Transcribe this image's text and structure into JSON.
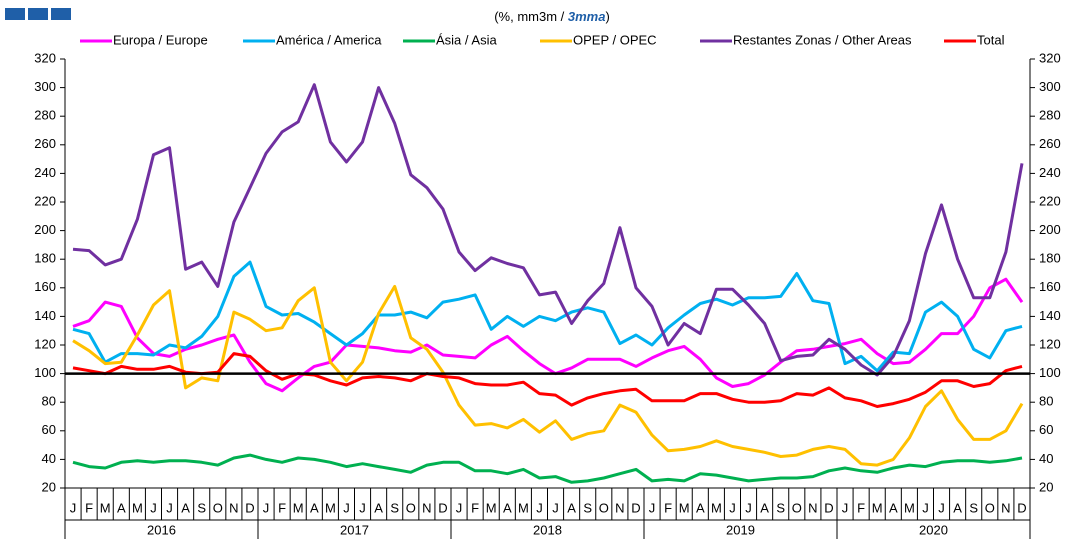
{
  "chart_data": {
    "type": "line",
    "subtitle": [
      "(%, mm3m / ",
      "3mma",
      ")"
    ],
    "categories": [
      "J",
      "F",
      "M",
      "A",
      "M",
      "J",
      "J",
      "A",
      "S",
      "O",
      "N",
      "D",
      "J",
      "F",
      "M",
      "A",
      "M",
      "J",
      "J",
      "A",
      "S",
      "O",
      "N",
      "D",
      "J",
      "F",
      "M",
      "A",
      "M",
      "J",
      "J",
      "A",
      "S",
      "O",
      "N",
      "D",
      "J",
      "F",
      "M",
      "A",
      "M",
      "J",
      "J",
      "A",
      "S",
      "O",
      "N",
      "D",
      "J",
      "F",
      "M",
      "A",
      "M",
      "J",
      "J",
      "A",
      "S",
      "O",
      "N",
      "D"
    ],
    "years": [
      "2016",
      "2017",
      "2018",
      "2019",
      "2020"
    ],
    "ylim": [
      20,
      320
    ],
    "yticks": [
      20,
      40,
      60,
      80,
      100,
      120,
      140,
      160,
      180,
      200,
      220,
      240,
      260,
      280,
      300,
      320
    ],
    "reference_line": 100,
    "legend": "top",
    "series": [
      {
        "name": "Europa / Europe",
        "color": "#ff00ff",
        "values": [
          133,
          137,
          150,
          147,
          125,
          114,
          112,
          117,
          120,
          124,
          127,
          108,
          93,
          88,
          97,
          105,
          108,
          120,
          119,
          118,
          116,
          115,
          120,
          113,
          112,
          111,
          120,
          126,
          116,
          107,
          100,
          104,
          110,
          110,
          110,
          105,
          111,
          116,
          119,
          110,
          97,
          91,
          93,
          99,
          108,
          116,
          117,
          119,
          121,
          124,
          114,
          107,
          108,
          117,
          128,
          128,
          140,
          160,
          166,
          150
        ]
      },
      {
        "name": "América / America",
        "color": "#00b0f0",
        "values": [
          131,
          128,
          108,
          114,
          114,
          113,
          120,
          118,
          126,
          140,
          168,
          178,
          147,
          141,
          142,
          136,
          128,
          120,
          128,
          141,
          141,
          143,
          139,
          150,
          152,
          155,
          131,
          140,
          133,
          140,
          137,
          143,
          146,
          143,
          121,
          127,
          120,
          132,
          141,
          149,
          152,
          148,
          153,
          153,
          154,
          170,
          151,
          149,
          107,
          112,
          102,
          115,
          114,
          143,
          150,
          140,
          117,
          111,
          130,
          133
        ]
      },
      {
        "name": "Ásia / Asia",
        "color": "#00b050",
        "values": [
          38,
          35,
          34,
          38,
          39,
          38,
          39,
          39,
          38,
          36,
          41,
          43,
          40,
          38,
          41,
          40,
          38,
          35,
          37,
          35,
          33,
          31,
          36,
          38,
          38,
          32,
          32,
          30,
          33,
          27,
          28,
          24,
          25,
          27,
          30,
          33,
          25,
          26,
          25,
          30,
          29,
          27,
          25,
          26,
          27,
          27,
          28,
          32,
          34,
          32,
          31,
          34,
          36,
          35,
          38,
          39,
          39,
          38,
          39,
          41
        ]
      },
      {
        "name": "OPEP / OPEC",
        "color": "#ffc000",
        "values": [
          123,
          116,
          107,
          108,
          127,
          148,
          158,
          90,
          97,
          95,
          143,
          138,
          130,
          132,
          151,
          160,
          108,
          95,
          108,
          142,
          161,
          125,
          117,
          101,
          78,
          64,
          65,
          62,
          68,
          59,
          67,
          54,
          58,
          60,
          78,
          73,
          57,
          46,
          47,
          49,
          53,
          49,
          47,
          45,
          42,
          43,
          47,
          49,
          47,
          37,
          36,
          40,
          55,
          77,
          88,
          68,
          54,
          54,
          60,
          79
        ]
      },
      {
        "name": "Restantes Zonas / Other Areas",
        "color": "#7030a0",
        "values": [
          187,
          186,
          176,
          180,
          208,
          253,
          258,
          173,
          178,
          161,
          206,
          230,
          254,
          269,
          276,
          302,
          262,
          248,
          262,
          300,
          275,
          239,
          230,
          215,
          185,
          172,
          181,
          177,
          174,
          155,
          157,
          135,
          151,
          163,
          202,
          160,
          147,
          120,
          135,
          128,
          159,
          159,
          148,
          135,
          109,
          112,
          113,
          124,
          117,
          106,
          99,
          112,
          137,
          184,
          218,
          180,
          153,
          153,
          185,
          247
        ]
      },
      {
        "name": "Total",
        "color": "#ff0000",
        "values": [
          104,
          102,
          100,
          105,
          103,
          103,
          105,
          101,
          100,
          101,
          114,
          112,
          102,
          96,
          100,
          99,
          95,
          92,
          97,
          98,
          97,
          95,
          100,
          98,
          97,
          93,
          92,
          92,
          94,
          86,
          85,
          78,
          83,
          86,
          88,
          89,
          81,
          81,
          81,
          86,
          86,
          82,
          80,
          80,
          81,
          86,
          85,
          90,
          83,
          81,
          77,
          79,
          82,
          87,
          95,
          95,
          91,
          93,
          102,
          105
        ]
      }
    ]
  }
}
